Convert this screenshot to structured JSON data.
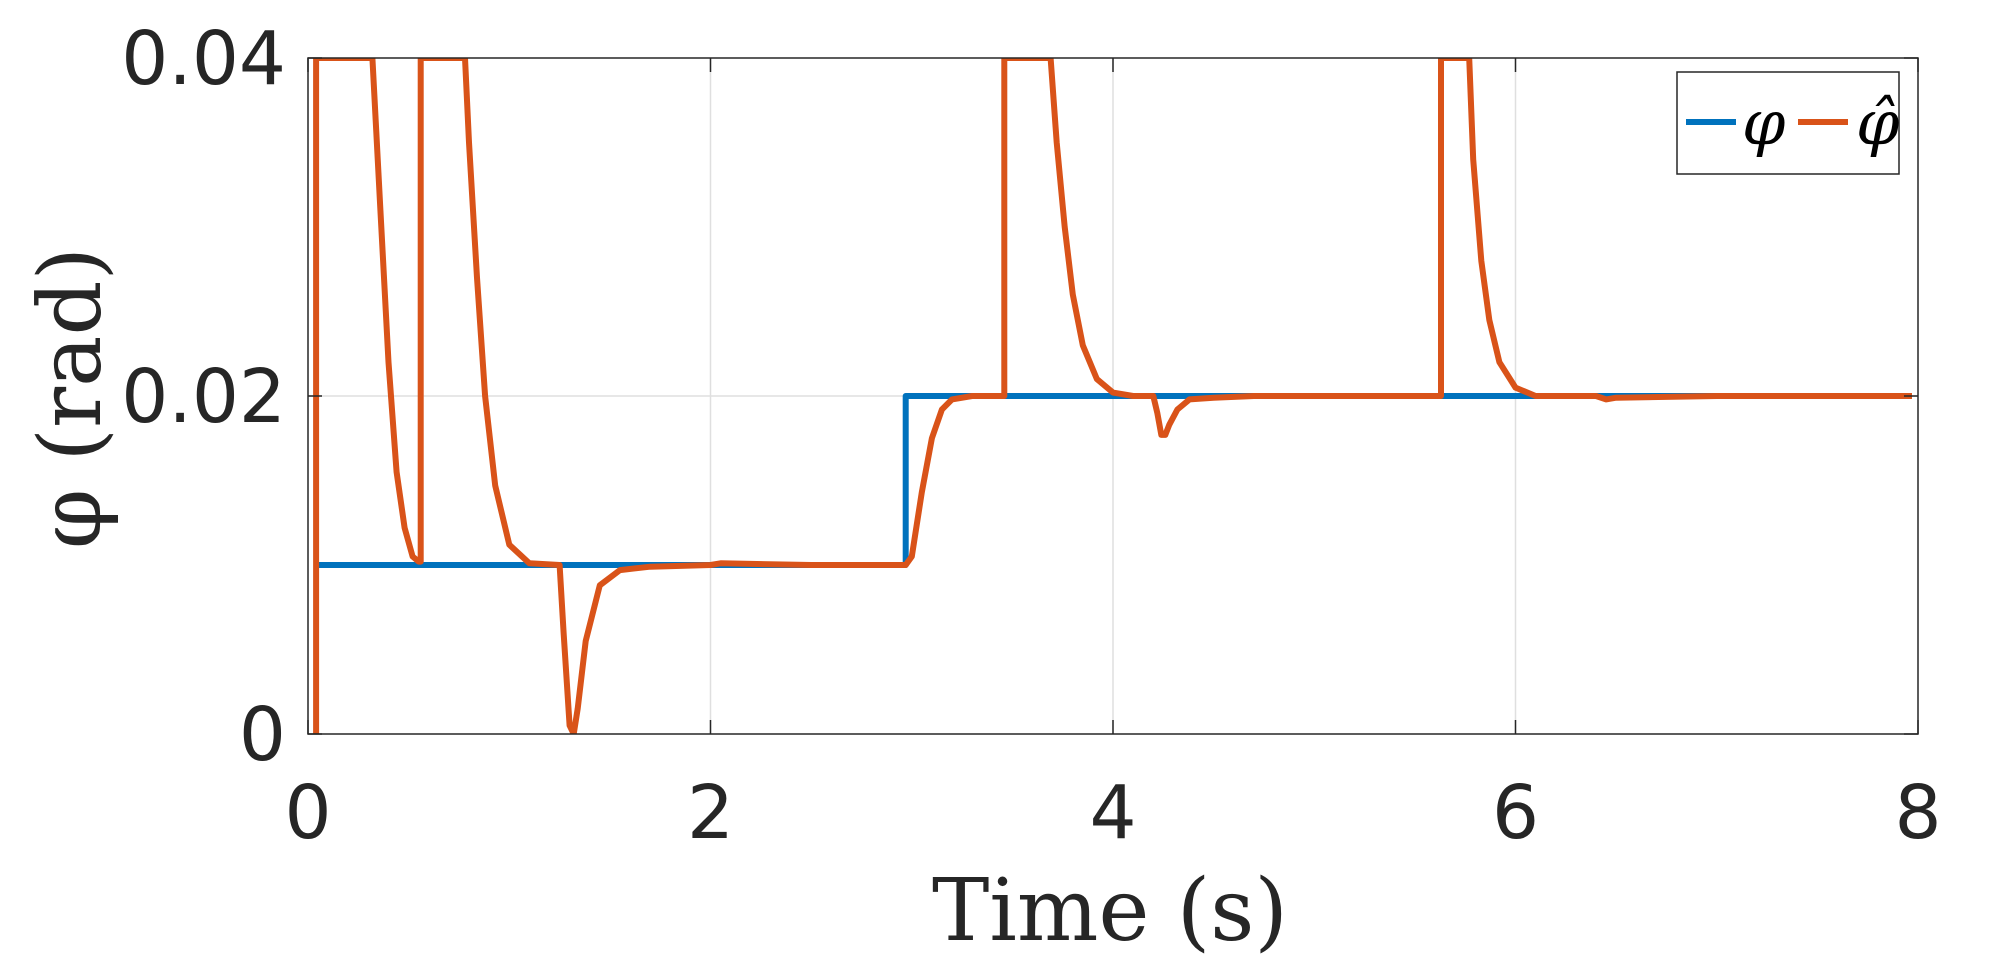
{
  "chart_data": {
    "type": "line",
    "title": "",
    "xlabel": "Time (s)",
    "ylabel": "φ (rad)",
    "xlim": [
      0,
      8
    ],
    "ylim": [
      0,
      0.04
    ],
    "xticks": [
      0,
      2,
      4,
      6,
      8
    ],
    "xtick_labels": [
      "0",
      "2",
      "4",
      "6",
      "8"
    ],
    "yticks": [
      0,
      0.02,
      0.04
    ],
    "ytick_labels": [
      "0",
      "0.02",
      "0.04"
    ],
    "grid": true,
    "legend": {
      "placement": "top-right",
      "orientation": "horizontal"
    },
    "series": [
      {
        "name": "φ",
        "color": "#0072BD",
        "x": [
          0.03,
          2.97,
          2.97,
          7.97
        ],
        "y": [
          0.01,
          0.01,
          0.02,
          0.02
        ]
      },
      {
        "name": "φ̂",
        "color": "#D95319",
        "x": [
          0.04,
          0.04,
          0.05,
          0.05,
          0.32,
          0.36,
          0.4,
          0.44,
          0.48,
          0.52,
          0.55,
          0.56,
          0.56,
          0.78,
          0.8,
          0.84,
          0.88,
          0.93,
          1.0,
          1.1,
          1.25,
          1.27,
          1.3,
          1.32,
          1.34,
          1.38,
          1.45,
          1.55,
          1.7,
          2.0,
          2.05,
          2.5,
          2.97,
          3.0,
          3.05,
          3.1,
          3.15,
          3.2,
          3.3,
          3.4,
          3.45,
          3.46,
          3.46,
          3.69,
          3.72,
          3.76,
          3.8,
          3.85,
          3.92,
          4.0,
          4.1,
          4.2,
          4.22,
          4.24,
          4.26,
          4.28,
          4.32,
          4.38,
          4.5,
          4.7,
          5.0,
          5.5,
          5.62,
          5.63,
          5.63,
          5.77,
          5.79,
          5.83,
          5.87,
          5.92,
          6.0,
          6.1,
          6.3,
          6.4,
          6.45,
          6.5,
          7.0,
          7.97
        ],
        "y": [
          0.0,
          0.04,
          0.04,
          0.04,
          0.04,
          0.031,
          0.022,
          0.0155,
          0.0122,
          0.0105,
          0.0102,
          0.0102,
          0.04,
          0.04,
          0.035,
          0.027,
          0.02,
          0.0147,
          0.0112,
          0.0101,
          0.01,
          0.006,
          0.0005,
          0.0,
          0.0015,
          0.0055,
          0.0088,
          0.0097,
          0.0099,
          0.01,
          0.0101,
          0.01,
          0.01,
          0.0105,
          0.0143,
          0.0175,
          0.0192,
          0.0198,
          0.02,
          0.02,
          0.02,
          0.02,
          0.04,
          0.04,
          0.035,
          0.03,
          0.026,
          0.023,
          0.021,
          0.0202,
          0.02,
          0.02,
          0.019,
          0.0177,
          0.0177,
          0.0183,
          0.0192,
          0.0198,
          0.0199,
          0.02,
          0.02,
          0.02,
          0.02,
          0.02,
          0.04,
          0.04,
          0.034,
          0.028,
          0.0245,
          0.022,
          0.0205,
          0.02,
          0.02,
          0.02,
          0.0198,
          0.0199,
          0.02,
          0.02
        ]
      }
    ]
  }
}
